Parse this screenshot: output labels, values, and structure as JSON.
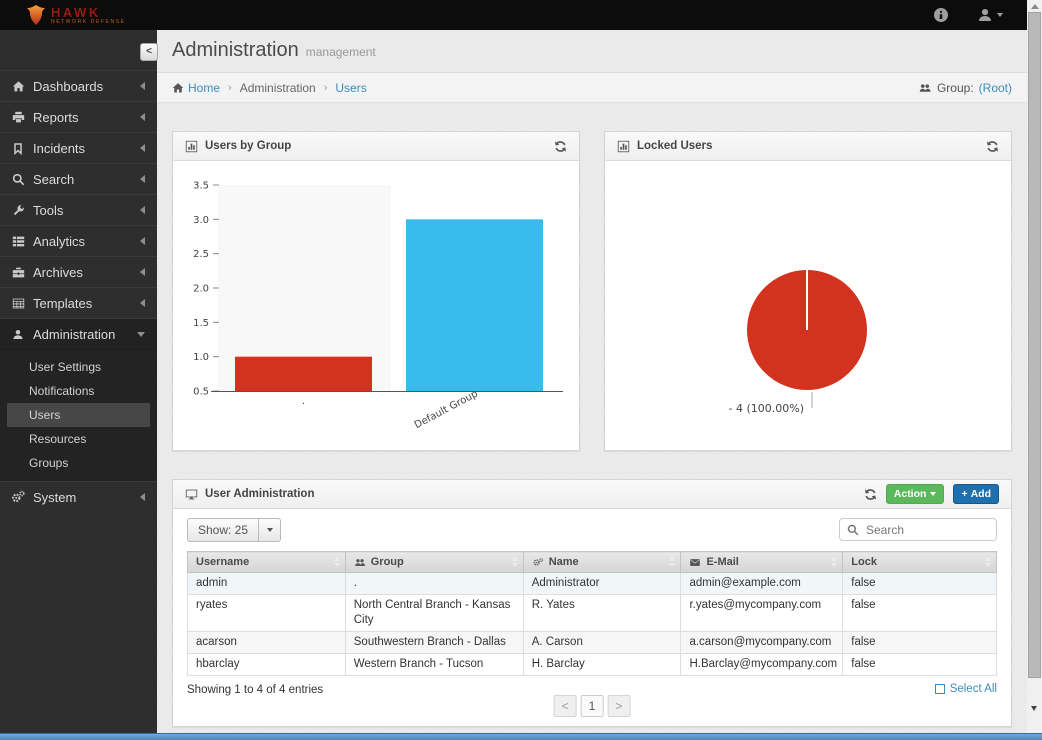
{
  "brand": {
    "name": "HAWK",
    "tagline": "NETWORK DEFENSE"
  },
  "sidebar": {
    "collapse_label": "<",
    "items": [
      {
        "label": "Dashboards"
      },
      {
        "label": "Reports"
      },
      {
        "label": "Incidents"
      },
      {
        "label": "Search"
      },
      {
        "label": "Tools"
      },
      {
        "label": "Analytics"
      },
      {
        "label": "Archives"
      },
      {
        "label": "Templates"
      },
      {
        "label": "Administration"
      },
      {
        "label": "System"
      }
    ],
    "admin_submenu": [
      {
        "label": "User Settings"
      },
      {
        "label": "Notifications"
      },
      {
        "label": "Users",
        "active": true
      },
      {
        "label": "Resources"
      },
      {
        "label": "Groups"
      }
    ]
  },
  "header": {
    "title": "Administration",
    "subtitle": "management"
  },
  "breadcrumb": {
    "home": "Home",
    "section": "Administration",
    "current": "Users",
    "group_label": "Group:",
    "group_value": "(Root)"
  },
  "panels": {
    "users_by_group": {
      "title": "Users by Group"
    },
    "locked_users": {
      "title": "Locked Users"
    },
    "user_admin": {
      "title": "User Administration",
      "action_label": "Action",
      "add_label": "Add",
      "add_plus": "+"
    }
  },
  "toolbar": {
    "show_label": "Show: 25",
    "search_placeholder": "Search"
  },
  "table": {
    "columns": [
      {
        "label": "Username"
      },
      {
        "label": "Group"
      },
      {
        "label": "Name"
      },
      {
        "label": "E-Mail"
      },
      {
        "label": "Lock"
      }
    ],
    "rows": [
      {
        "username": "admin",
        "group": ".",
        "name": "Administrator",
        "email": "admin@example.com",
        "lock": "false"
      },
      {
        "username": "ryates",
        "group": "North Central Branch - Kansas City",
        "name": "R. Yates",
        "email": "r.yates@mycompany.com",
        "lock": "false"
      },
      {
        "username": "acarson",
        "group": "Southwestern Branch - Dallas",
        "name": "A. Carson",
        "email": "a.carson@mycompany.com",
        "lock": "false"
      },
      {
        "username": "hbarclay",
        "group": "Western Branch - Tucson",
        "name": "H. Barclay",
        "email": "H.Barclay@mycompany.com",
        "lock": "false"
      }
    ],
    "footer_info": "Showing 1 to 4 of 4 entries",
    "select_all_label": "Select All",
    "pagination": {
      "prev": "<",
      "page": "1",
      "next": ">"
    }
  },
  "chart_data": [
    {
      "type": "bar",
      "title": "Users by Group",
      "categories": [
        ".",
        "Default Group"
      ],
      "values": [
        1,
        3
      ],
      "colors": [
        "#d3321f",
        "#38bcee"
      ],
      "ylim": [
        0.5,
        3.5
      ],
      "yticks": [
        0.5,
        1.0,
        1.5,
        2.0,
        2.5,
        3.0,
        3.5
      ],
      "xlabel": "",
      "ylabel": "",
      "grid": false,
      "legend": "none"
    },
    {
      "type": "pie",
      "title": "Locked Users",
      "labels": [
        "-"
      ],
      "values": [
        4
      ],
      "percent_labels": [
        "- 4 (100.00%)"
      ],
      "colors": [
        "#d3321f"
      ],
      "legend": "none"
    }
  ],
  "colors": {
    "accent_blue": "#3c8dbc",
    "action_green": "#5cb85c",
    "add_blue": "#1d6fad",
    "bar_red": "#d3321f",
    "bar_blue": "#38bcee"
  }
}
